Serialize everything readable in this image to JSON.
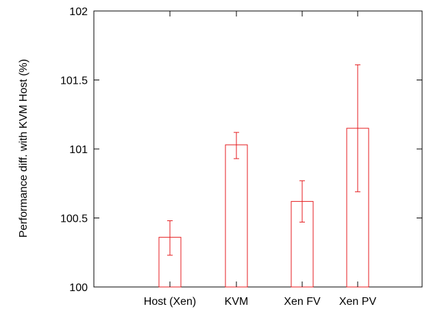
{
  "chart_data": {
    "type": "bar",
    "title": "",
    "xlabel": "",
    "ylabel": "Performance diff. with KVM Host (%)",
    "ylim": [
      100,
      102
    ],
    "yticks": [
      "100",
      "100.5",
      "101",
      "101.5",
      "102"
    ],
    "ytick_values": [
      100,
      100.5,
      101,
      101.5,
      102
    ],
    "categories": [
      "Host (Xen)",
      "KVM",
      "Xen FV",
      "Xen PV"
    ],
    "values": [
      100.36,
      101.03,
      100.62,
      101.15
    ],
    "error_low": [
      100.23,
      100.93,
      100.47,
      100.69
    ],
    "error_high": [
      100.48,
      101.12,
      100.77,
      101.61
    ],
    "grid": false,
    "legend": "none",
    "bar_color": "#e41a1c"
  }
}
